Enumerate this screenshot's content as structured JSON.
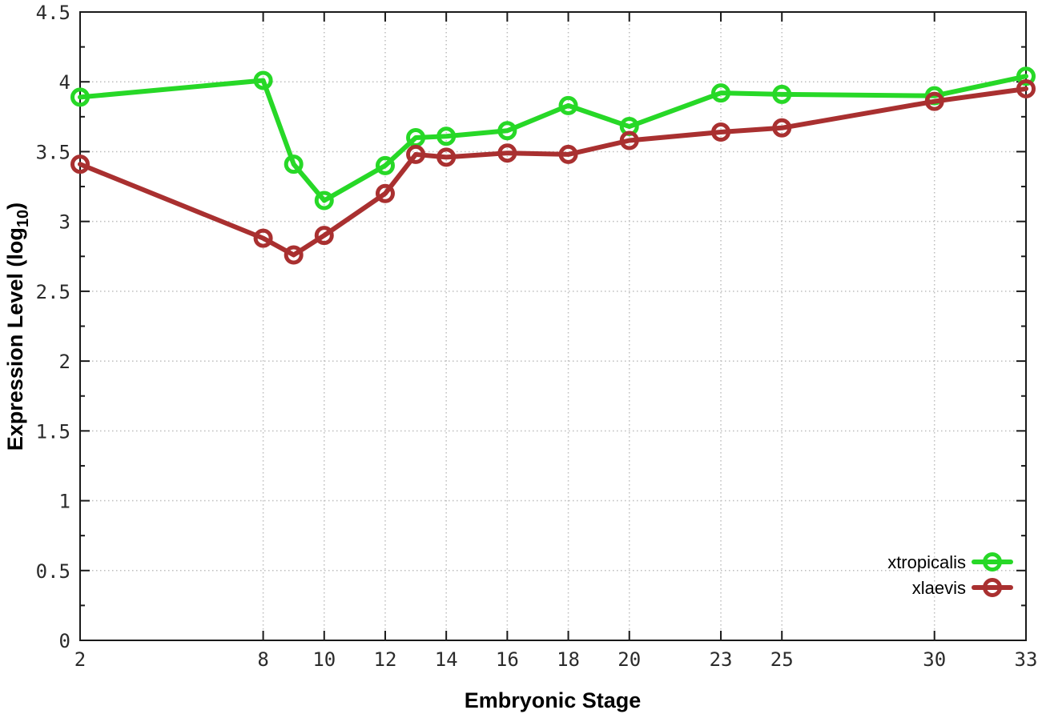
{
  "chart_data": {
    "type": "line",
    "title": "",
    "xlabel": "Embryonic Stage",
    "ylabel": "Expression Level (log10)",
    "ylabel_parts": {
      "prefix": "Expression Level (log",
      "sub": "10",
      "suffix": ")"
    },
    "x": [
      2,
      8,
      9,
      10,
      12,
      13,
      14,
      16,
      18,
      20,
      23,
      25,
      30,
      33
    ],
    "series": [
      {
        "name": "xtropicalis",
        "color": "#27d827",
        "values": [
          3.89,
          4.01,
          3.41,
          3.15,
          3.4,
          3.6,
          3.61,
          3.65,
          3.83,
          3.68,
          3.92,
          3.91,
          3.9,
          4.04
        ]
      },
      {
        "name": "xlaevis",
        "color": "#a93030",
        "values": [
          3.41,
          2.88,
          2.76,
          2.9,
          3.2,
          3.48,
          3.46,
          3.49,
          3.48,
          3.58,
          3.64,
          3.67,
          3.86,
          3.95
        ]
      }
    ],
    "xlim": [
      2,
      33
    ],
    "ylim": [
      0,
      4.5
    ],
    "xticks": [
      2,
      8,
      10,
      12,
      14,
      16,
      18,
      20,
      23,
      25,
      30,
      33
    ],
    "xtick_labels": [
      "2",
      "8",
      "10",
      "12",
      "14",
      "16",
      "18",
      "20",
      "23",
      "25",
      "30",
      "33"
    ],
    "yticks": [
      0,
      0.5,
      1,
      1.5,
      2,
      2.5,
      3,
      3.5,
      4,
      4.5
    ],
    "ytick_labels": [
      "0",
      "0.5",
      "1",
      "1.5",
      "2",
      "2.5",
      "3",
      "3.5",
      "4",
      "4.5"
    ],
    "grid": true,
    "legend_position": "bottom-right",
    "marker": "open-circle"
  },
  "style": {
    "background": "#ffffff",
    "axis_color": "#1a1a1a",
    "grid_color": "#bdbdbd",
    "tick_label_color": "#2b2b2b",
    "title_color": "#000000"
  }
}
